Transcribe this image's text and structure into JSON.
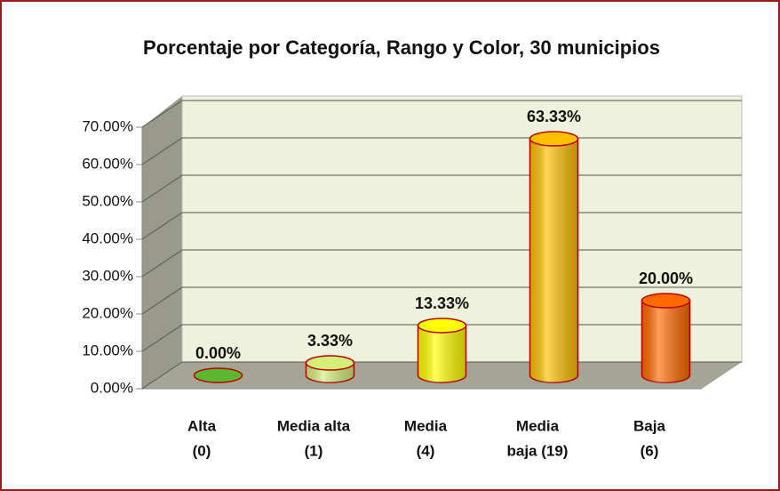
{
  "chart_data": {
    "type": "bar3d",
    "title": "Porcentaje por Categoría, Rango y Color, 30 municipios",
    "categories": [
      [
        "Alta",
        "(0)"
      ],
      [
        "Media alta",
        "(1)"
      ],
      [
        "Media",
        "(4)"
      ],
      [
        "Media",
        "baja (19)"
      ],
      [
        "Baja",
        "(6)"
      ]
    ],
    "values": [
      0,
      3.33,
      13.33,
      63.33,
      20
    ],
    "value_labels": [
      "0.00%",
      "3.33%",
      "13.33%",
      "63.33%",
      "20.00%"
    ],
    "colors": [
      "#5cb82e",
      "#d4ee7a",
      "#ffff00",
      "#ffc000",
      "#ff6a00"
    ],
    "ylim": [
      0,
      70
    ],
    "yticks": [
      {
        "value": 0,
        "label": "0.00%"
      },
      {
        "value": 10,
        "label": "10.00%"
      },
      {
        "value": 20,
        "label": "20.00%"
      },
      {
        "value": 30,
        "label": "30.00%"
      },
      {
        "value": 40,
        "label": "40.00%"
      },
      {
        "value": 50,
        "label": "50.00%"
      },
      {
        "value": 60,
        "label": "60.00%"
      },
      {
        "value": 70,
        "label": "70.00%"
      }
    ],
    "grid": true
  }
}
